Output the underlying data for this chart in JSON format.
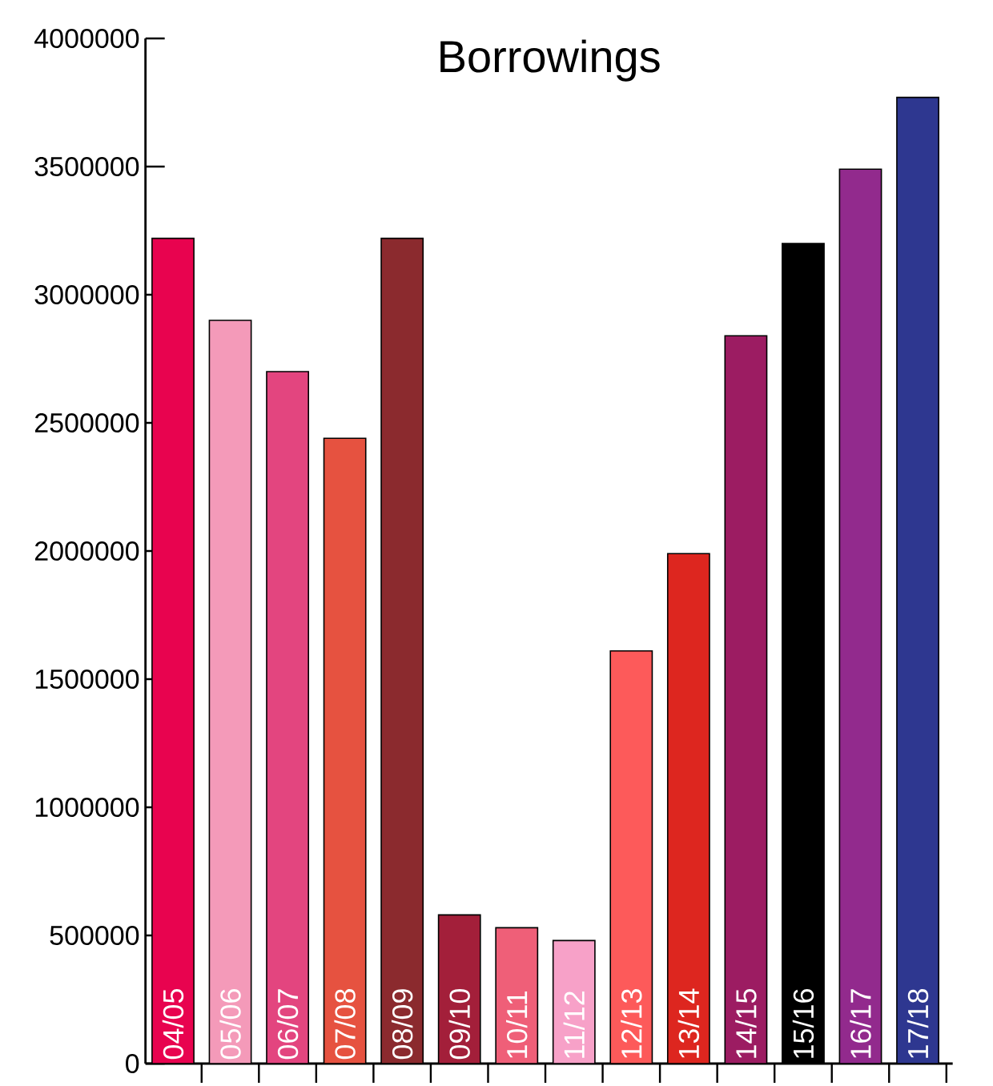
{
  "chart_data": {
    "type": "bar",
    "title": "Borrowings",
    "categories": [
      "04/05",
      "05/06",
      "06/07",
      "07/08",
      "08/09",
      "09/10",
      "10/11",
      "11/12",
      "12/13",
      "13/14",
      "14/15",
      "15/16",
      "16/17",
      "17/18"
    ],
    "values": [
      3220000,
      2900000,
      2700000,
      2440000,
      3220000,
      580000,
      530000,
      480000,
      1610000,
      1990000,
      2840000,
      3200000,
      3490000,
      3770000
    ],
    "colors": [
      "#e8034f",
      "#f49ab9",
      "#e3457f",
      "#e65240",
      "#8b2a2e",
      "#a31f3a",
      "#ef5f78",
      "#f7a1c8",
      "#fd5a5a",
      "#dd261f",
      "#9c1c62",
      "#000000",
      "#922a8d",
      "#2e3790"
    ],
    "ylim": [
      0,
      4000000
    ],
    "yticks": [
      0,
      500000,
      1000000,
      1500000,
      2000000,
      2500000,
      3000000,
      3500000,
      4000000
    ]
  }
}
